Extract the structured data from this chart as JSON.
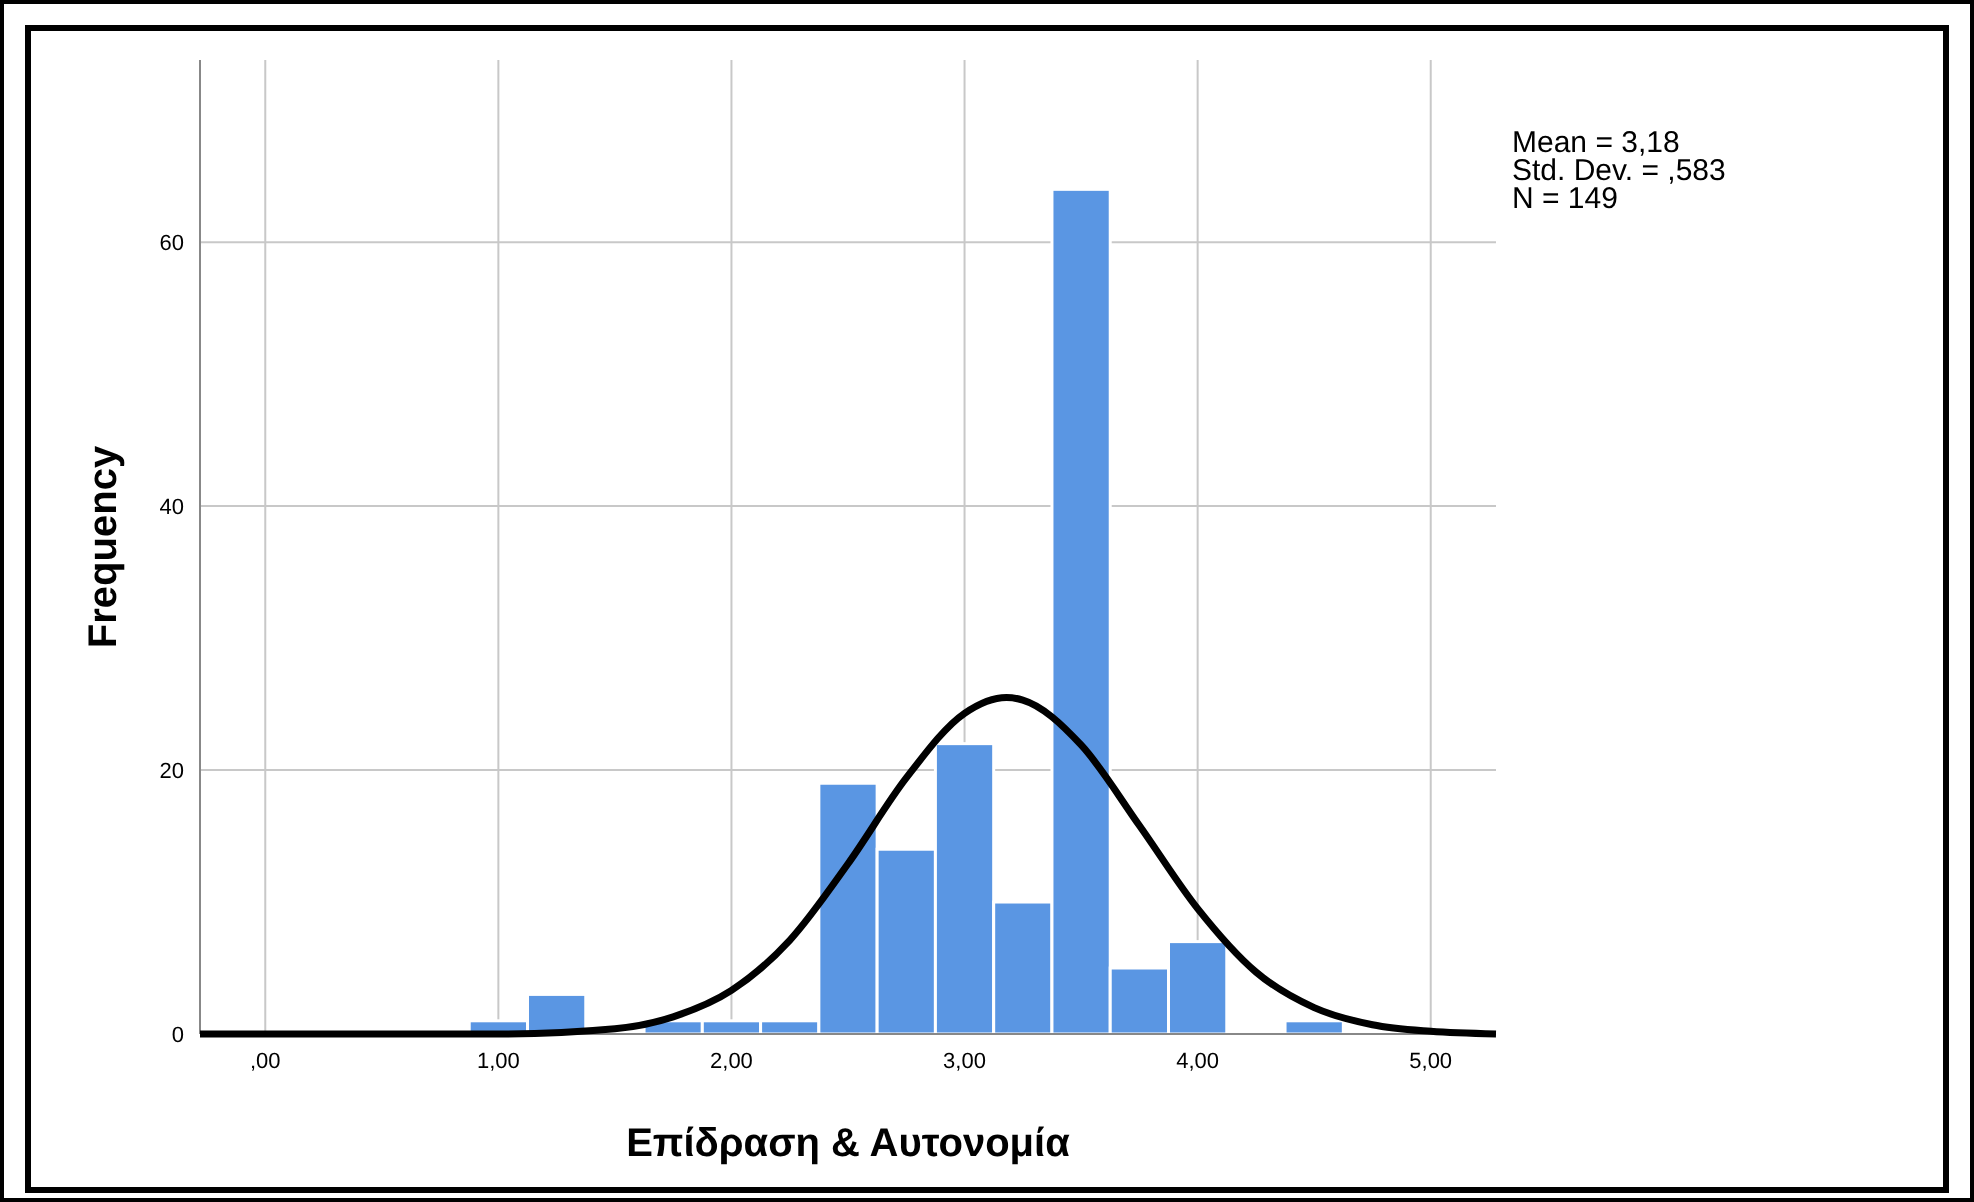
{
  "chart_data": {
    "type": "histogram",
    "xlabel": "Επίδραση & Αυτονομία",
    "ylabel": "Frequency",
    "annotations": [
      "Mean = 3,18",
      "Std. Dev. = ,583",
      "N = 149"
    ],
    "bins": [
      0.875,
      1.125,
      1.375,
      1.625,
      1.875,
      2.125,
      2.375,
      2.625,
      2.875,
      3.125,
      3.375,
      3.625,
      3.875,
      4.125,
      4.375,
      4.625
    ],
    "values": [
      1,
      3,
      0,
      1,
      1,
      1,
      19,
      14,
      22,
      10,
      64,
      5,
      7,
      0,
      1
    ],
    "color": "#5a96e3",
    "series": [
      {
        "type": "line",
        "color": "#000000",
        "x": [
          -0.28,
          0.5,
          1.0,
          1.5,
          1.75,
          2.0,
          2.25,
          2.5,
          2.75,
          3.0,
          3.18,
          3.25,
          3.5,
          3.75,
          4.0,
          4.25,
          4.5,
          4.75,
          5.0,
          5.28
        ],
        "values": [
          0,
          0,
          0,
          0.4,
          1.3,
          3.3,
          7.1,
          12.9,
          19.4,
          24.3,
          25.5,
          25.3,
          21.9,
          15.8,
          9.5,
          4.7,
          2.0,
          0.7,
          0.2,
          0
        ]
      }
    ],
    "xlim": [
      -0.28,
      5.28
    ],
    "ylim": [
      0,
      73.8
    ],
    "xticks": [
      {
        "value": 0,
        "label": ",00"
      },
      {
        "value": 1,
        "label": "1,00"
      },
      {
        "value": 2,
        "label": "2,00"
      },
      {
        "value": 3,
        "label": "3,00"
      },
      {
        "value": 4,
        "label": "4,00"
      },
      {
        "value": 5,
        "label": "5,00"
      }
    ],
    "yticks": [
      0,
      20,
      40,
      60
    ],
    "grid": true,
    "marker": "none",
    "line_style": "solid"
  }
}
